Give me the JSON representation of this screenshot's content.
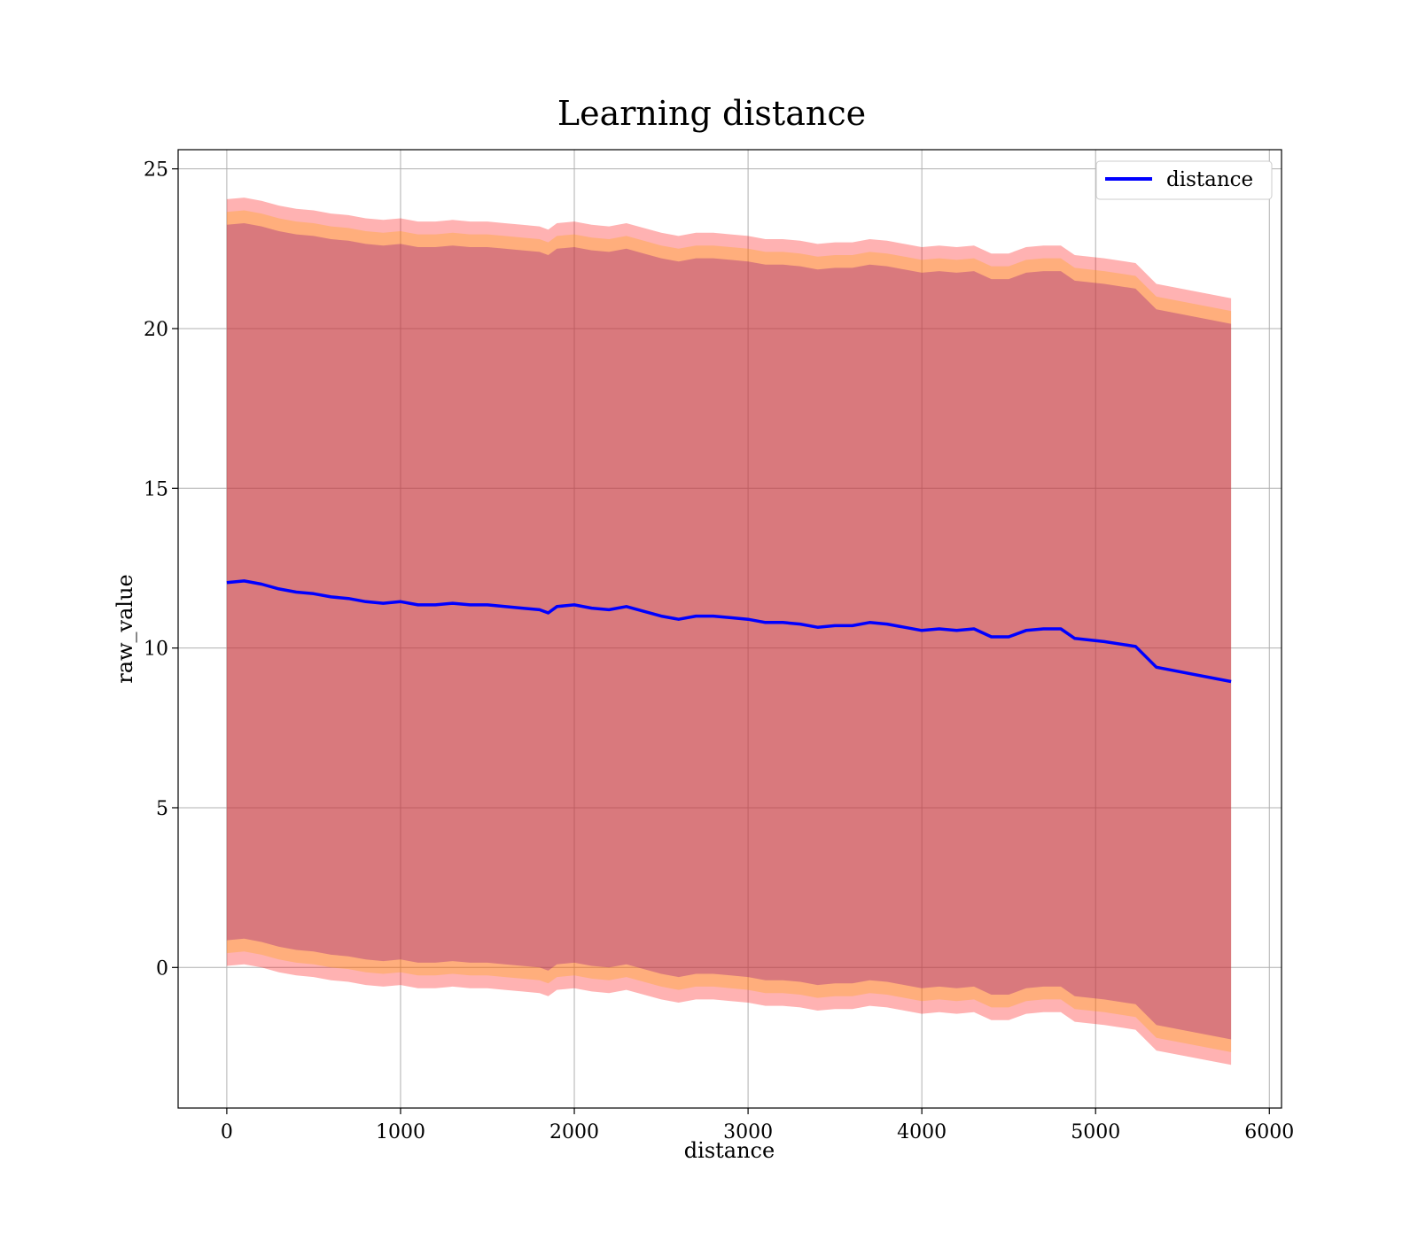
{
  "chart_data": {
    "type": "line",
    "title": "Learning distance",
    "xlabel": "distance",
    "ylabel": "raw_value",
    "xlim": [
      -280,
      6070
    ],
    "ylim": [
      -4.4,
      25.6
    ],
    "x_ticks": [
      0,
      1000,
      2000,
      3000,
      4000,
      5000,
      6000
    ],
    "y_ticks": [
      0,
      5,
      10,
      15,
      20,
      25
    ],
    "x_tick_labels": [
      "0",
      "1000",
      "2000",
      "3000",
      "4000",
      "5000",
      "6000"
    ],
    "y_tick_labels": [
      "0",
      "5",
      "10",
      "15",
      "20",
      "25"
    ],
    "grid": true,
    "legend": {
      "position": "top-right",
      "entries": [
        "distance"
      ]
    },
    "colors": {
      "line": "#0000ff",
      "band_outer": "#ff0000",
      "band_middle": "#ffa500",
      "band_inner": "#800080"
    },
    "x": [
      0,
      100,
      200,
      300,
      400,
      500,
      600,
      700,
      800,
      900,
      1000,
      1100,
      1200,
      1300,
      1400,
      1500,
      1600,
      1700,
      1800,
      1850,
      1900,
      2000,
      2100,
      2200,
      2300,
      2400,
      2500,
      2600,
      2700,
      2800,
      2900,
      3000,
      3100,
      3200,
      3300,
      3400,
      3500,
      3600,
      3700,
      3800,
      3900,
      4000,
      4100,
      4200,
      4300,
      4400,
      4500,
      4600,
      4700,
      4800,
      4880,
      5050,
      5230,
      5350,
      5780
    ],
    "series": [
      {
        "name": "distance",
        "values": [
          12.05,
          12.1,
          12.0,
          11.85,
          11.75,
          11.7,
          11.6,
          11.55,
          11.45,
          11.4,
          11.45,
          11.35,
          11.35,
          11.4,
          11.35,
          11.35,
          11.3,
          11.25,
          11.2,
          11.1,
          11.3,
          11.35,
          11.25,
          11.2,
          11.3,
          11.15,
          11.0,
          10.9,
          11.0,
          11.0,
          10.95,
          10.9,
          10.8,
          10.8,
          10.75,
          10.65,
          10.7,
          10.7,
          10.8,
          10.75,
          10.65,
          10.55,
          10.6,
          10.55,
          10.6,
          10.35,
          10.35,
          10.55,
          10.6,
          10.6,
          10.3,
          10.2,
          10.05,
          9.4,
          8.95
        ]
      }
    ],
    "band_half_widths": {
      "outer": 12.0,
      "middle": 11.6,
      "inner": 11.2
    }
  }
}
